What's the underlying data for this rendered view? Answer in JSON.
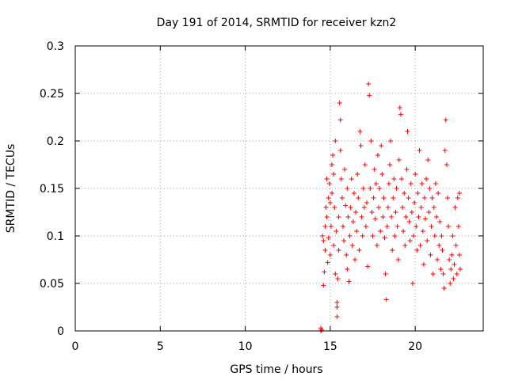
{
  "chart_data": {
    "type": "scatter",
    "title": "Day 191 of 2014, SRMTID for receiver kzn2",
    "xlabel": "GPS time / hours",
    "ylabel": "SRMTID / TECUs",
    "xlim": [
      0,
      24
    ],
    "ylim": [
      0,
      0.3
    ],
    "grid": true,
    "marker": "+",
    "color": "#ff0000",
    "xticks": [
      0,
      5,
      10,
      15,
      20
    ],
    "xtick_labels": [
      "0",
      "5",
      "10",
      "15",
      "20"
    ],
    "yticks": [
      0,
      0.05,
      0.1,
      0.15,
      0.2,
      0.25,
      0.3
    ],
    "ytick_labels": [
      "0",
      "0.05",
      "0.1",
      "0.15",
      "0.2",
      "0.25",
      "0.3"
    ],
    "series": [
      {
        "name": "kzn2",
        "points": [
          [
            14.45,
            0.0
          ],
          [
            14.45,
            0.003
          ],
          [
            14.5,
            0.001
          ],
          [
            14.55,
            0.1
          ],
          [
            14.6,
            0.095
          ],
          [
            14.6,
            0.048
          ],
          [
            14.65,
            0.062
          ],
          [
            14.7,
            0.085
          ],
          [
            14.7,
            0.11
          ],
          [
            14.75,
            0.13
          ],
          [
            14.8,
            0.16
          ],
          [
            14.8,
            0.12
          ],
          [
            14.85,
            0.072
          ],
          [
            14.9,
            0.098
          ],
          [
            14.9,
            0.14
          ],
          [
            14.95,
            0.155
          ],
          [
            15.0,
            0.135
          ],
          [
            15.0,
            0.08
          ],
          [
            15.05,
            0.11
          ],
          [
            15.1,
            0.175
          ],
          [
            15.1,
            0.145
          ],
          [
            15.15,
            0.185
          ],
          [
            15.2,
            0.165
          ],
          [
            15.2,
            0.09
          ],
          [
            15.25,
            0.13
          ],
          [
            15.3,
            0.2
          ],
          [
            15.3,
            0.06
          ],
          [
            15.35,
            0.105
          ],
          [
            15.4,
            0.03
          ],
          [
            15.4,
            0.025
          ],
          [
            15.4,
            0.015
          ],
          [
            15.45,
            0.055
          ],
          [
            15.5,
            0.12
          ],
          [
            15.5,
            0.085
          ],
          [
            15.55,
            0.24
          ],
          [
            15.6,
            0.222
          ],
          [
            15.6,
            0.19
          ],
          [
            15.65,
            0.16
          ],
          [
            15.7,
            0.14
          ],
          [
            15.75,
            0.11
          ],
          [
            15.8,
            0.095
          ],
          [
            15.85,
            0.17
          ],
          [
            15.9,
            0.132
          ],
          [
            15.95,
            0.08
          ],
          [
            16.0,
            0.065
          ],
          [
            16.0,
            0.15
          ],
          [
            16.05,
            0.12
          ],
          [
            16.1,
            0.052
          ],
          [
            16.15,
            0.1
          ],
          [
            16.2,
            0.13
          ],
          [
            16.25,
            0.16
          ],
          [
            16.3,
            0.09
          ],
          [
            16.35,
            0.115
          ],
          [
            16.4,
            0.145
          ],
          [
            16.45,
            0.075
          ],
          [
            16.5,
            0.125
          ],
          [
            16.55,
            0.105
          ],
          [
            16.6,
            0.165
          ],
          [
            16.65,
            0.14
          ],
          [
            16.7,
            0.085
          ],
          [
            16.75,
            0.21
          ],
          [
            16.8,
            0.195
          ],
          [
            16.85,
            0.12
          ],
          [
            16.9,
            0.1
          ],
          [
            16.95,
            0.15
          ],
          [
            17.0,
            0.13
          ],
          [
            17.05,
            0.175
          ],
          [
            17.1,
            0.11
          ],
          [
            17.15,
            0.135
          ],
          [
            17.2,
            0.068
          ],
          [
            17.25,
            0.26
          ],
          [
            17.3,
            0.248
          ],
          [
            17.35,
            0.15
          ],
          [
            17.4,
            0.2
          ],
          [
            17.45,
            0.125
          ],
          [
            17.5,
            0.1
          ],
          [
            17.55,
            0.14
          ],
          [
            17.6,
            0.17
          ],
          [
            17.65,
            0.118
          ],
          [
            17.7,
            0.155
          ],
          [
            17.75,
            0.09
          ],
          [
            17.8,
            0.185
          ],
          [
            17.85,
            0.13
          ],
          [
            17.9,
            0.15
          ],
          [
            17.95,
            0.105
          ],
          [
            18.0,
            0.195
          ],
          [
            18.05,
            0.165
          ],
          [
            18.1,
            0.12
          ],
          [
            18.15,
            0.14
          ],
          [
            18.2,
            0.098
          ],
          [
            18.25,
            0.06
          ],
          [
            18.3,
            0.033
          ],
          [
            18.35,
            0.11
          ],
          [
            18.4,
            0.13
          ],
          [
            18.45,
            0.155
          ],
          [
            18.5,
            0.175
          ],
          [
            18.55,
            0.2
          ],
          [
            18.6,
            0.12
          ],
          [
            18.65,
            0.085
          ],
          [
            18.7,
            0.14
          ],
          [
            18.75,
            0.16
          ],
          [
            18.8,
            0.1
          ],
          [
            18.85,
            0.125
          ],
          [
            18.9,
            0.15
          ],
          [
            18.95,
            0.11
          ],
          [
            19.0,
            0.075
          ],
          [
            19.05,
            0.18
          ],
          [
            19.1,
            0.235
          ],
          [
            19.15,
            0.228
          ],
          [
            19.2,
            0.16
          ],
          [
            19.25,
            0.13
          ],
          [
            19.3,
            0.105
          ],
          [
            19.35,
            0.145
          ],
          [
            19.4,
            0.09
          ],
          [
            19.45,
            0.12
          ],
          [
            19.5,
            0.17
          ],
          [
            19.55,
            0.21
          ],
          [
            19.6,
            0.14
          ],
          [
            19.65,
            0.115
          ],
          [
            19.7,
            0.095
          ],
          [
            19.75,
            0.155
          ],
          [
            19.8,
            0.125
          ],
          [
            19.85,
            0.05
          ],
          [
            19.9,
            0.1
          ],
          [
            19.95,
            0.135
          ],
          [
            20.0,
            0.165
          ],
          [
            20.05,
            0.11
          ],
          [
            20.1,
            0.085
          ],
          [
            20.15,
            0.145
          ],
          [
            20.2,
            0.12
          ],
          [
            20.25,
            0.19
          ],
          [
            20.3,
            0.09
          ],
          [
            20.35,
            0.13
          ],
          [
            20.4,
            0.155
          ],
          [
            20.45,
            0.105
          ],
          [
            20.5,
            0.07
          ],
          [
            20.55,
            0.14
          ],
          [
            20.6,
            0.118
          ],
          [
            20.65,
            0.16
          ],
          [
            20.7,
            0.095
          ],
          [
            20.75,
            0.18
          ],
          [
            20.8,
            0.125
          ],
          [
            20.85,
            0.15
          ],
          [
            20.9,
            0.08
          ],
          [
            20.95,
            0.11
          ],
          [
            21.0,
            0.14
          ],
          [
            21.05,
            0.06
          ],
          [
            21.1,
            0.13
          ],
          [
            21.15,
            0.1
          ],
          [
            21.2,
            0.155
          ],
          [
            21.25,
            0.12
          ],
          [
            21.3,
            0.075
          ],
          [
            21.35,
            0.145
          ],
          [
            21.4,
            0.09
          ],
          [
            21.45,
            0.115
          ],
          [
            21.5,
            0.065
          ],
          [
            21.55,
            0.1
          ],
          [
            21.6,
            0.085
          ],
          [
            21.65,
            0.06
          ],
          [
            21.7,
            0.045
          ],
          [
            21.75,
            0.19
          ],
          [
            21.8,
            0.222
          ],
          [
            21.85,
            0.175
          ],
          [
            21.9,
            0.14
          ],
          [
            21.95,
            0.11
          ],
          [
            22.0,
            0.075
          ],
          [
            22.05,
            0.05
          ],
          [
            22.1,
            0.065
          ],
          [
            22.15,
            0.08
          ],
          [
            22.2,
            0.1
          ],
          [
            22.25,
            0.055
          ],
          [
            22.3,
            0.07
          ],
          [
            22.35,
            0.13
          ],
          [
            22.4,
            0.09
          ],
          [
            22.45,
            0.06
          ],
          [
            22.5,
            0.14
          ],
          [
            22.55,
            0.11
          ],
          [
            22.6,
            0.08
          ],
          [
            22.6,
            0.145
          ],
          [
            22.65,
            0.065
          ]
        ]
      }
    ]
  }
}
